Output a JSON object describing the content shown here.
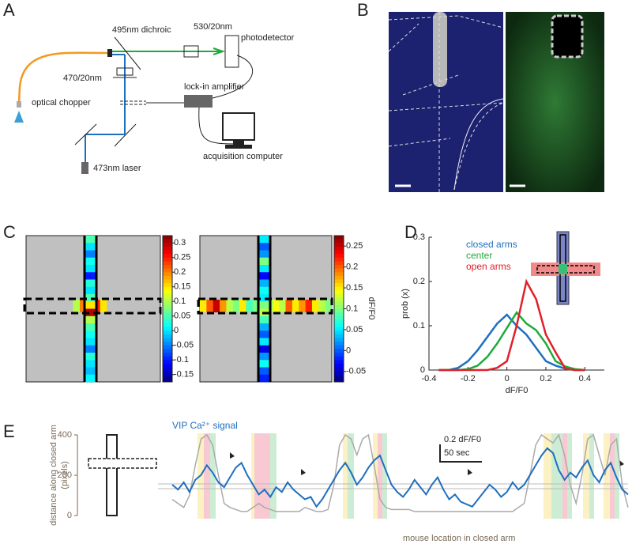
{
  "panel_labels": [
    "A",
    "B",
    "C",
    "D",
    "E"
  ],
  "panel_a": {
    "labels": {
      "dichroic": "495nm dichroic",
      "emission_filter": "530/20nm",
      "photodetector": "photodetector",
      "excitation_filter": "470/20nm",
      "amplifier": "lock-in amplifier",
      "chopper": "optical chopper",
      "computer": "acquisition computer",
      "laser": "473nm laser"
    }
  },
  "panel_c": {
    "maps": [
      {
        "clim": [
          -0.175,
          0.325
        ],
        "colorbar_ticks": [
          0.3,
          0.25,
          0.2,
          0.15,
          0.1,
          0.05,
          0,
          -0.05,
          -0.1,
          -0.15
        ],
        "vertical_arm": [
          0.05,
          0.0,
          -0.05,
          0.02,
          0.0,
          -0.1,
          0.03,
          0.0,
          0.05,
          0.15,
          0.3,
          0.1,
          0.05,
          0.02,
          0.0,
          -0.05,
          0.03,
          0.0,
          -0.02,
          0.01
        ],
        "horizontal_arm": [
          null,
          null,
          null,
          null,
          null,
          null,
          null,
          0.1,
          0.2,
          0.3,
          0.25,
          0.15,
          null,
          null,
          null,
          null,
          null,
          null,
          null,
          null
        ]
      },
      {
        "clim": [
          -0.075,
          0.275
        ],
        "colorbar_ticks": [
          0.25,
          0.2,
          0.15,
          0.1,
          0.05,
          0,
          -0.05
        ],
        "vertical_arm": [
          0.05,
          0.0,
          0.02,
          0.1,
          0.05,
          -0.03,
          0.03,
          0.06,
          0.05,
          0.1,
          0.12,
          0.08,
          0.03,
          0.0,
          0.05,
          -0.04,
          0.02,
          0.06,
          0.0,
          -0.02
        ],
        "horizontal_arm": [
          0.15,
          0.2,
          0.25,
          0.18,
          0.12,
          0.1,
          0.15,
          0.08,
          0.1,
          0.12,
          0.1,
          0.14,
          0.12,
          0.2,
          0.15,
          0.18,
          0.22,
          0.15,
          0.12,
          0.1
        ]
      }
    ],
    "colorbar_label": "dF/F0"
  },
  "chart_data": {
    "type": "line",
    "x_label": "dF/F0",
    "y_label": "prob (x)",
    "x": [
      -0.35,
      -0.3,
      -0.25,
      -0.2,
      -0.15,
      -0.1,
      -0.05,
      0,
      0.05,
      0.1,
      0.15,
      0.2,
      0.25,
      0.3,
      0.35,
      0.4
    ],
    "series": [
      {
        "name": "closed arms",
        "color": "#1f6fbf",
        "values": [
          0,
          0,
          0.005,
          0.02,
          0.045,
          0.075,
          0.105,
          0.125,
          0.1,
          0.08,
          0.05,
          0.02,
          0.01,
          0.003,
          0,
          0
        ]
      },
      {
        "name": "center",
        "color": "#1faa3a",
        "values": [
          0,
          0,
          0,
          0.002,
          0.01,
          0.03,
          0.06,
          0.095,
          0.13,
          0.105,
          0.09,
          0.06,
          0.02,
          0.008,
          0.002,
          0
        ]
      },
      {
        "name": "open arms",
        "color": "#e0202a",
        "values": [
          0,
          0,
          0,
          0,
          0,
          0,
          0.005,
          0.02,
          0.1,
          0.2,
          0.16,
          0.08,
          0.04,
          0.003,
          0,
          0
        ]
      }
    ],
    "xlim": [
      -0.4,
      0.5
    ],
    "xticks": [
      -0.4,
      -0.2,
      0,
      0.2,
      0.4
    ],
    "ylim": [
      0,
      0.3
    ],
    "yticks": [
      0,
      0.1,
      0.2,
      0.3
    ]
  },
  "panel_e": {
    "y_label": "distance along closed arm",
    "y_label_unit": "(pixels)",
    "ylim": [
      0,
      400
    ],
    "yticks": [
      0,
      200,
      400
    ],
    "signal_label": "VIP Ca²⁺ signal",
    "scale_y": "0.2 dF/F0",
    "scale_x": "50 sec",
    "location_label": "mouse location in closed arm",
    "signal": [
      0.12,
      0.1,
      0.13,
      0.09,
      0.14,
      0.16,
      0.2,
      0.17,
      0.13,
      0.11,
      0.15,
      0.19,
      0.21,
      0.16,
      0.12,
      0.08,
      0.1,
      0.07,
      0.11,
      0.09,
      0.13,
      0.1,
      0.08,
      0.06,
      0.07,
      0.03,
      0.06,
      0.1,
      0.14,
      0.18,
      0.21,
      0.17,
      0.12,
      0.15,
      0.19,
      0.22,
      0.24,
      0.18,
      0.12,
      0.09,
      0.07,
      0.1,
      0.14,
      0.11,
      0.08,
      0.12,
      0.15,
      0.1,
      0.06,
      0.08,
      0.05,
      0.04,
      0.03,
      0.06,
      0.09,
      0.12,
      0.1,
      0.07,
      0.09,
      0.13,
      0.1,
      0.12,
      0.16,
      0.2,
      0.24,
      0.27,
      0.25,
      0.18,
      0.14,
      0.17,
      0.15,
      0.19,
      0.22,
      0.16,
      0.13,
      0.18,
      0.21,
      0.15,
      0.1,
      0.08
    ],
    "location": [
      80,
      60,
      40,
      100,
      250,
      380,
      400,
      350,
      200,
      60,
      40,
      30,
      20,
      20,
      40,
      60,
      40,
      30,
      20,
      20,
      20,
      20,
      20,
      40,
      30,
      20,
      20,
      30,
      150,
      350,
      400,
      380,
      300,
      380,
      400,
      250,
      80,
      40,
      30,
      30,
      30,
      30,
      20,
      20,
      20,
      20,
      20,
      20,
      20,
      20,
      20,
      20,
      20,
      20,
      20,
      20,
      20,
      20,
      20,
      20,
      40,
      60,
      200,
      350,
      400,
      380,
      360,
      400,
      300,
      150,
      60,
      200,
      380,
      400,
      300,
      200,
      350,
      380,
      150,
      40
    ]
  }
}
